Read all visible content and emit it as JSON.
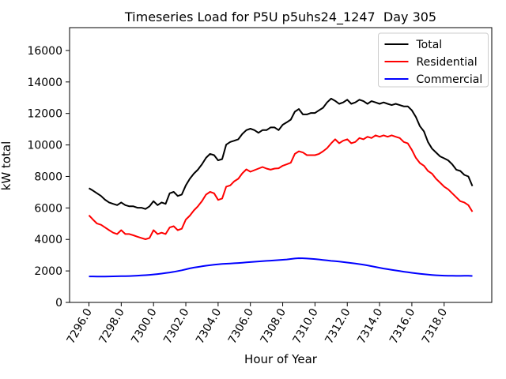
{
  "figure": {
    "title": "Timeseries Load for P5U p5uhs24_1247  Day 305",
    "xlabel": "Hour of Year",
    "ylabel": "kW total"
  },
  "chart_data": {
    "type": "line",
    "title": "Timeseries Load for P5U p5uhs24_1247  Day 305",
    "xlabel": "Hour of Year",
    "ylabel": "kW total",
    "grid": false,
    "legend_position": "upper right",
    "xlim": [
      7294.8,
      7320.95
    ],
    "ylim": [
      0,
      17450
    ],
    "x_tick_values": [
      7296,
      7298,
      7300,
      7302,
      7304,
      7306,
      7308,
      7310,
      7312,
      7314,
      7316,
      7318
    ],
    "x_tick_labels": [
      "7296.0",
      "7298.0",
      "7300.0",
      "7302.0",
      "7304.0",
      "7306.0",
      "7308.0",
      "7310.0",
      "7312.0",
      "7314.0",
      "7316.0",
      "7318.0"
    ],
    "y_tick_values": [
      0,
      2000,
      4000,
      6000,
      8000,
      10000,
      12000,
      14000,
      16000
    ],
    "y_tick_labels": [
      "0",
      "2000",
      "4000",
      "6000",
      "8000",
      "10000",
      "12000",
      "14000",
      "16000"
    ],
    "x_start": 7296.0,
    "x_step": 0.25,
    "series": [
      {
        "name": "Total",
        "color": "#000000",
        "values": [
          7250,
          7100,
          6930,
          6760,
          6520,
          6350,
          6260,
          6180,
          6350,
          6180,
          6100,
          6100,
          6010,
          6010,
          5930,
          6100,
          6430,
          6180,
          6350,
          6260,
          6930,
          7020,
          6760,
          6850,
          7430,
          7850,
          8180,
          8430,
          8770,
          9180,
          9430,
          9350,
          9020,
          9100,
          10020,
          10190,
          10270,
          10360,
          10700,
          10940,
          11030,
          10940,
          10770,
          10940,
          10940,
          11110,
          11110,
          10940,
          11280,
          11440,
          11610,
          12110,
          12280,
          11940,
          11940,
          12030,
          12030,
          12200,
          12360,
          12700,
          12940,
          12800,
          12610,
          12700,
          12870,
          12610,
          12700,
          12870,
          12780,
          12610,
          12780,
          12700,
          12610,
          12700,
          12610,
          12530,
          12610,
          12530,
          12450,
          12450,
          12200,
          11780,
          11190,
          10860,
          10190,
          9770,
          9520,
          9270,
          9150,
          9020,
          8770,
          8430,
          8350,
          8100,
          8000,
          7390
        ]
      },
      {
        "name": "Residential",
        "color": "#ff0000",
        "values": [
          5530,
          5260,
          5010,
          4930,
          4760,
          4590,
          4430,
          4340,
          4590,
          4340,
          4340,
          4260,
          4170,
          4090,
          4010,
          4090,
          4590,
          4340,
          4430,
          4340,
          4760,
          4840,
          4590,
          4680,
          5260,
          5510,
          5840,
          6100,
          6430,
          6850,
          7020,
          6930,
          6510,
          6600,
          7350,
          7430,
          7690,
          7850,
          8200,
          8450,
          8300,
          8400,
          8500,
          8600,
          8500,
          8430,
          8500,
          8520,
          8680,
          8770,
          8870,
          9430,
          9600,
          9520,
          9350,
          9350,
          9350,
          9430,
          9600,
          9800,
          10100,
          10360,
          10110,
          10270,
          10360,
          10110,
          10190,
          10440,
          10360,
          10520,
          10440,
          10610,
          10520,
          10610,
          10520,
          10610,
          10520,
          10440,
          10190,
          10100,
          9690,
          9180,
          8850,
          8680,
          8350,
          8180,
          7850,
          7600,
          7350,
          7180,
          6930,
          6680,
          6430,
          6350,
          6180,
          5760
        ]
      },
      {
        "name": "Commercial",
        "color": "#0000ff",
        "values": [
          1650,
          1650,
          1640,
          1640,
          1645,
          1650,
          1655,
          1660,
          1665,
          1670,
          1675,
          1685,
          1700,
          1715,
          1730,
          1750,
          1775,
          1800,
          1830,
          1865,
          1900,
          1940,
          1990,
          2040,
          2100,
          2160,
          2210,
          2250,
          2290,
          2330,
          2360,
          2390,
          2420,
          2440,
          2455,
          2470,
          2485,
          2500,
          2520,
          2540,
          2560,
          2580,
          2600,
          2620,
          2640,
          2655,
          2670,
          2690,
          2710,
          2730,
          2760,
          2790,
          2810,
          2805,
          2790,
          2775,
          2755,
          2730,
          2700,
          2670,
          2640,
          2615,
          2590,
          2560,
          2530,
          2500,
          2465,
          2430,
          2390,
          2350,
          2300,
          2250,
          2200,
          2150,
          2110,
          2070,
          2030,
          1990,
          1950,
          1915,
          1880,
          1850,
          1820,
          1790,
          1765,
          1745,
          1725,
          1710,
          1700,
          1695,
          1690,
          1685,
          1685,
          1690,
          1690,
          1680
        ]
      }
    ]
  }
}
